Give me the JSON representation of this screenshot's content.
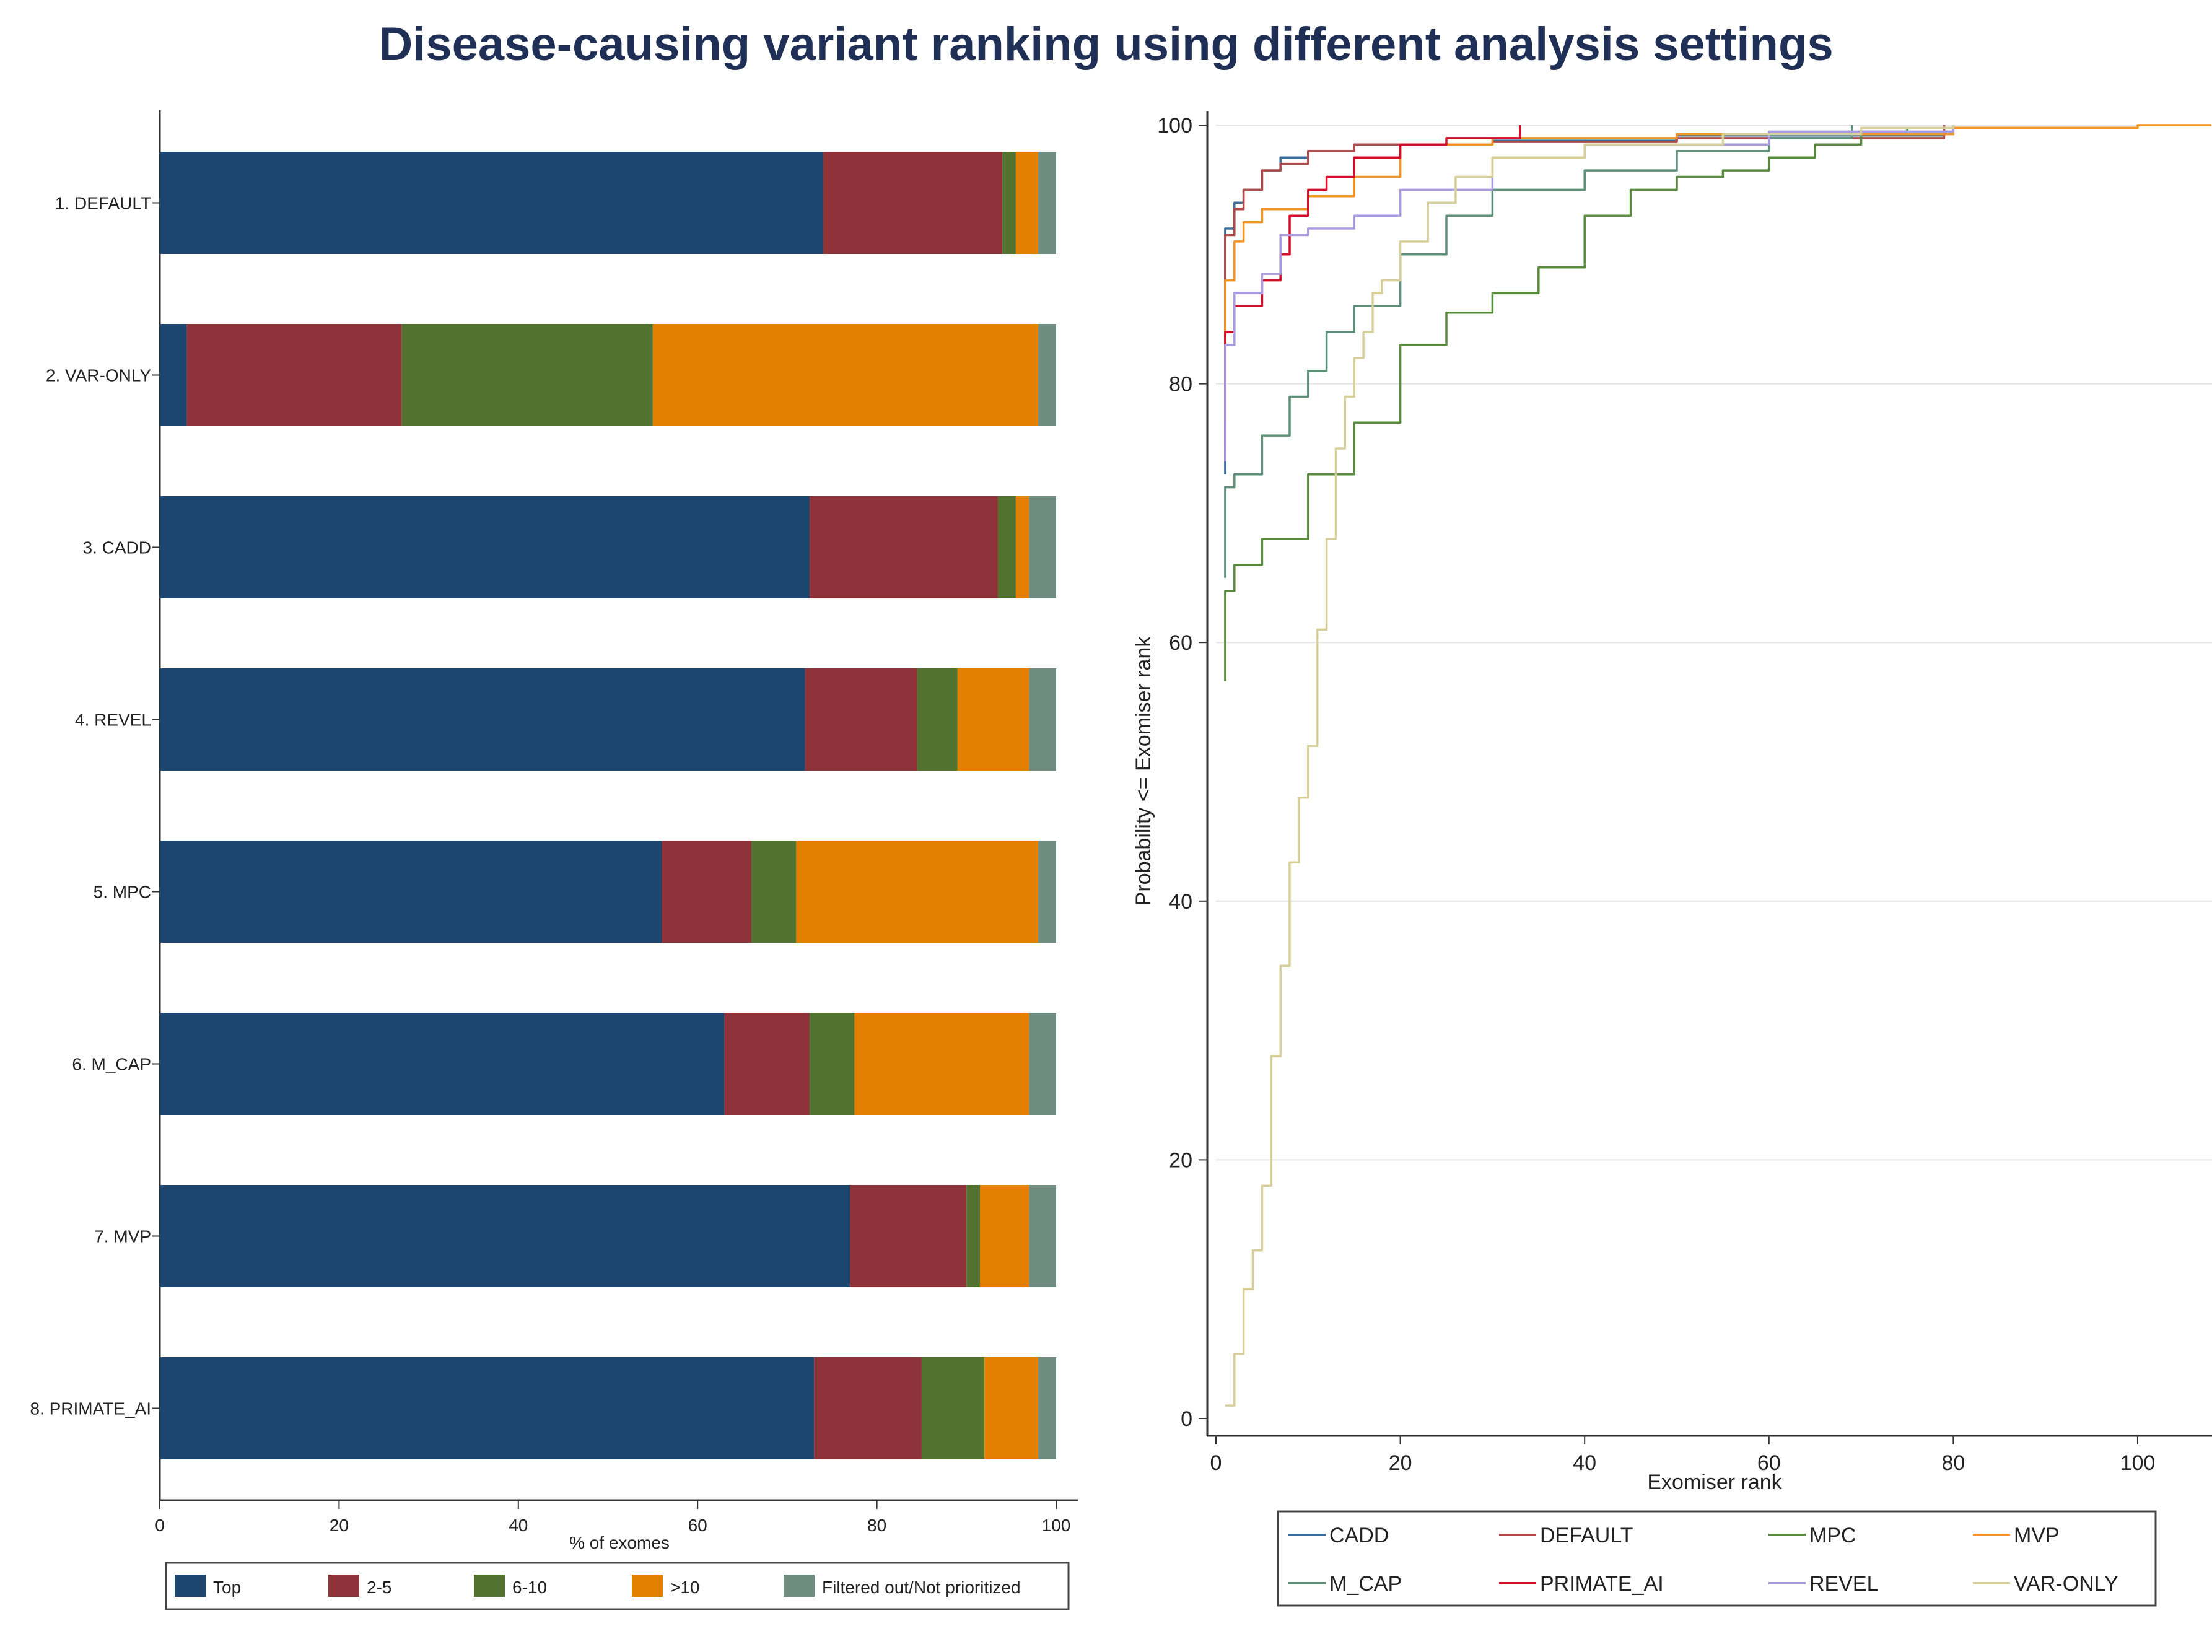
{
  "title": "Disease-causing variant ranking using different analysis settings",
  "colors": {
    "Top": "#1c466d",
    "2-5": "#8e333a",
    "6-10": "#527330",
    ">10": "#e38002",
    "Filtered out/Not prioritized": "#6f8c80",
    "CADD": "#3c6d9a",
    "DEFAULT": "#b04a4a",
    "MPC": "#5a8a3e",
    "MVP": "#f29424",
    "M_CAP": "#5e8f78",
    "PRIMATE_AI": "#d3102c",
    "REVEL": "#a79adf",
    "VAR-ONLY": "#d7cf9a"
  },
  "chart_data": [
    {
      "type": "bar",
      "orientation": "horizontal",
      "stacked": true,
      "categories": [
        "1. DEFAULT",
        "2. VAR-ONLY",
        "3. CADD",
        "4. REVEL",
        "5. MPC",
        "6. M_CAP",
        "7. MVP",
        "8. PRIMATE_AI"
      ],
      "series": [
        {
          "name": "Top",
          "values": [
            74,
            3,
            72.5,
            72,
            56,
            63,
            77,
            73
          ]
        },
        {
          "name": "2-5",
          "values": [
            20,
            24,
            21,
            12.5,
            10,
            9.5,
            13,
            12
          ]
        },
        {
          "name": "6-10",
          "values": [
            1.5,
            28,
            2,
            4.5,
            5,
            5,
            1.5,
            7
          ]
        },
        {
          "name": ">10",
          "values": [
            2.5,
            43,
            1.5,
            8,
            27,
            19.5,
            5.5,
            6
          ]
        },
        {
          "name": "Filtered out/Not prioritized",
          "values": [
            2,
            2,
            3,
            3,
            2,
            3,
            3,
            2
          ]
        }
      ],
      "xlabel": "% of exomes",
      "xlim": [
        0,
        100
      ],
      "xticks": [
        0,
        20,
        40,
        60,
        80,
        100
      ],
      "legend": [
        "Top",
        "2-5",
        "6-10",
        ">10",
        "Filtered out/Not prioritized"
      ]
    },
    {
      "type": "line",
      "xlabel": "Exomiser rank",
      "ylabel": "Probability <= Exomiser rank",
      "xlim": [
        0,
        108
      ],
      "ylim": [
        0,
        100
      ],
      "xticks": [
        0,
        20,
        40,
        60,
        80,
        100
      ],
      "yticks": [
        0,
        20,
        40,
        60,
        80,
        100
      ],
      "grid": true,
      "series": [
        {
          "name": "CADD",
          "x": [
            1,
            1,
            2,
            3,
            5,
            7,
            10,
            15,
            30,
            50,
            79
          ],
          "y": [
            73,
            92,
            94,
            95,
            96.5,
            97.5,
            98,
            98.5,
            98.8,
            99.2,
            100
          ]
        },
        {
          "name": "DEFAULT",
          "x": [
            1,
            1,
            2,
            3,
            5,
            7,
            10,
            15,
            30,
            50,
            79
          ],
          "y": [
            75,
            91.5,
            93.5,
            95,
            96.5,
            97,
            98,
            98.5,
            98.7,
            99,
            100
          ]
        },
        {
          "name": "MPC",
          "x": [
            1,
            1,
            2,
            5,
            10,
            15,
            20,
            25,
            30,
            35,
            40,
            45,
            50,
            55,
            60,
            65,
            70,
            75,
            80
          ],
          "y": [
            57,
            64,
            66,
            68,
            73,
            77,
            83,
            85.5,
            87,
            89,
            93,
            95,
            96,
            96.5,
            97.5,
            98.5,
            99.5,
            99.8,
            100
          ]
        },
        {
          "name": "MVP",
          "x": [
            1,
            1,
            2,
            3,
            5,
            10,
            15,
            20,
            20,
            30,
            50,
            80,
            100,
            108
          ],
          "y": [
            77,
            88,
            91,
            92.5,
            93.5,
            94.5,
            96,
            97,
            98.5,
            99,
            99.3,
            99.8,
            100,
            100
          ]
        },
        {
          "name": "M_CAP",
          "x": [
            1,
            1,
            2,
            5,
            8,
            10,
            12,
            15,
            20,
            25,
            30,
            40,
            50,
            60,
            69
          ],
          "y": [
            65,
            72,
            73,
            76,
            79,
            81,
            84,
            86,
            90,
            93,
            95,
            96.5,
            98,
            99,
            100
          ]
        },
        {
          "name": "PRIMATE_AI",
          "x": [
            1,
            1,
            2,
            5,
            7,
            8,
            10,
            12,
            15,
            20,
            25,
            33
          ],
          "y": [
            74,
            84,
            86,
            88,
            90,
            93,
            95,
            96,
            97.5,
            98.5,
            99,
            100
          ]
        },
        {
          "name": "REVEL",
          "x": [
            1,
            1,
            2,
            5,
            7,
            10,
            15,
            20,
            30,
            40,
            60,
            80
          ],
          "y": [
            74,
            83,
            87,
            88.5,
            91.5,
            92,
            93,
            95,
            97.5,
            98.5,
            99.5,
            100
          ]
        },
        {
          "name": "VAR-ONLY",
          "x": [
            1,
            2,
            3,
            4,
            5,
            6,
            7,
            8,
            9,
            10,
            11,
            12,
            13,
            14,
            15,
            16,
            17,
            18,
            20,
            23,
            26,
            30,
            40,
            55,
            70,
            80
          ],
          "y": [
            1,
            5,
            10,
            13,
            18,
            28,
            35,
            43,
            48,
            52,
            61,
            68,
            75,
            79,
            82,
            84,
            87,
            88,
            91,
            94,
            96,
            97.5,
            98.5,
            99.3,
            99.8,
            100
          ]
        }
      ],
      "legend": [
        "CADD",
        "DEFAULT",
        "MPC",
        "MVP",
        "M_CAP",
        "PRIMATE_AI",
        "REVEL",
        "VAR-ONLY"
      ]
    }
  ]
}
